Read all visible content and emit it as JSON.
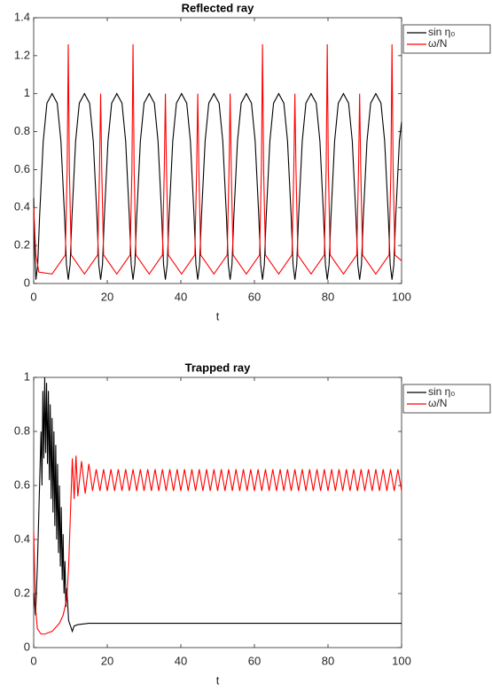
{
  "chart_data": [
    {
      "type": "line",
      "title": "Reflected ray",
      "xlabel": "t",
      "xlim": [
        0,
        100
      ],
      "ylim": [
        0,
        1.4
      ],
      "xticks": [
        0,
        20,
        40,
        60,
        80,
        100
      ],
      "yticks": [
        0,
        0.2,
        0.4,
        0.6,
        0.8,
        1,
        1.2,
        1.4
      ],
      "legend": "outside-northeast",
      "series": [
        {
          "name": "sin η₀",
          "color": "#000000",
          "x": [
            0,
            0.3,
            0.6,
            1.1,
            1.6,
            2.6,
            3.6,
            5,
            6.4,
            7.4,
            8.4,
            8.9,
            9.4,
            9.9,
            10.4,
            11.4,
            12.4,
            13.8,
            15.2,
            16.2,
            17.2,
            17.7,
            18.2,
            18.7,
            19.2,
            20.2,
            21.2,
            22.6,
            24,
            25,
            26,
            26.5,
            27,
            27.5,
            28,
            29,
            30,
            31.4,
            32.8,
            33.8,
            34.8,
            35.3,
            35.8,
            36.3,
            36.8,
            37.8,
            38.8,
            40.2,
            41.6,
            42.6,
            43.6,
            44.1,
            44.6,
            45.1,
            45.6,
            46.6,
            47.6,
            49,
            50.4,
            51.4,
            52.4,
            52.9,
            53.4,
            53.9,
            54.4,
            55.4,
            56.4,
            57.8,
            59.2,
            60.2,
            61.2,
            61.7,
            62.2,
            62.7,
            63.2,
            64.2,
            65.2,
            66.6,
            68,
            69,
            70,
            70.5,
            71,
            71.5,
            72,
            73,
            74,
            75.4,
            76.8,
            77.8,
            78.8,
            79.3,
            79.8,
            80.3,
            80.8,
            81.8,
            82.8,
            84.2,
            85.6,
            86.6,
            87.6,
            88.1,
            88.6,
            89.1,
            89.6,
            90.6,
            91.6,
            93,
            94.4,
            95.4,
            96.4,
            96.9,
            97.4,
            97.9,
            98.4,
            99.4,
            100
          ],
          "values": [
            0.45,
            0.15,
            0.02,
            0.1,
            0.35,
            0.75,
            0.95,
            1,
            0.95,
            0.75,
            0.35,
            0.1,
            0.02,
            0.1,
            0.35,
            0.75,
            0.95,
            1,
            0.95,
            0.75,
            0.35,
            0.1,
            0.02,
            0.1,
            0.35,
            0.75,
            0.95,
            1,
            0.95,
            0.75,
            0.35,
            0.1,
            0.02,
            0.1,
            0.35,
            0.75,
            0.95,
            1,
            0.95,
            0.75,
            0.35,
            0.1,
            0.02,
            0.1,
            0.35,
            0.75,
            0.95,
            1,
            0.95,
            0.75,
            0.35,
            0.1,
            0.02,
            0.1,
            0.35,
            0.75,
            0.95,
            1,
            0.95,
            0.75,
            0.35,
            0.1,
            0.02,
            0.1,
            0.35,
            0.75,
            0.95,
            1,
            0.95,
            0.75,
            0.35,
            0.1,
            0.02,
            0.1,
            0.35,
            0.75,
            0.95,
            1,
            0.95,
            0.75,
            0.35,
            0.1,
            0.02,
            0.1,
            0.35,
            0.75,
            0.95,
            1,
            0.95,
            0.75,
            0.35,
            0.1,
            0.02,
            0.1,
            0.35,
            0.75,
            0.95,
            1,
            0.95,
            0.75,
            0.35,
            0.1,
            0.02,
            0.1,
            0.35,
            0.75,
            0.95,
            1,
            0.95,
            0.75,
            0.35,
            0.1,
            0.02,
            0.1,
            0.35,
            0.75,
            0.85
          ]
        },
        {
          "name": "ω/N",
          "color": "#ff0000",
          "x": [
            0,
            0.6,
            1.4,
            5,
            8.6,
            9.1,
            9.4,
            9.7,
            10.2,
            13.8,
            17.4,
            17.9,
            18.2,
            18.5,
            19,
            22.6,
            26.2,
            26.7,
            27,
            27.3,
            27.8,
            31.4,
            35,
            35.5,
            35.8,
            36.1,
            36.6,
            40.2,
            43.8,
            44.3,
            44.6,
            44.9,
            45.4,
            49,
            52.6,
            53.1,
            53.4,
            53.7,
            54.2,
            57.8,
            61.4,
            61.9,
            62.2,
            62.5,
            63,
            66.6,
            70.2,
            70.7,
            71,
            71.3,
            71.8,
            75.4,
            79,
            79.5,
            79.8,
            80.1,
            80.6,
            84.2,
            87.8,
            88.3,
            88.6,
            88.9,
            89.4,
            93,
            96.6,
            97.1,
            97.4,
            97.7,
            98.2,
            100
          ],
          "values": [
            0.4,
            0.15,
            0.06,
            0.05,
            0.15,
            0.6,
            1.26,
            0.6,
            0.15,
            0.05,
            0.15,
            0.6,
            1,
            0.6,
            0.15,
            0.05,
            0.15,
            0.6,
            1.26,
            0.6,
            0.15,
            0.05,
            0.15,
            0.6,
            1,
            0.6,
            0.15,
            0.05,
            0.15,
            0.6,
            1,
            0.6,
            0.15,
            0.05,
            0.15,
            0.6,
            1,
            0.6,
            0.15,
            0.05,
            0.15,
            0.6,
            1.26,
            0.6,
            0.15,
            0.05,
            0.15,
            0.6,
            1,
            0.6,
            0.15,
            0.05,
            0.15,
            0.6,
            1.26,
            0.6,
            0.15,
            0.05,
            0.15,
            0.6,
            1,
            0.6,
            0.15,
            0.05,
            0.15,
            0.6,
            1.26,
            0.6,
            0.15,
            0.12
          ]
        }
      ]
    },
    {
      "type": "line",
      "title": "Trapped ray",
      "xlabel": "t",
      "xlim": [
        0,
        100
      ],
      "ylim": [
        0,
        1
      ],
      "xticks": [
        0,
        20,
        40,
        60,
        80,
        100
      ],
      "yticks": [
        0,
        0.2,
        0.4,
        0.6,
        0.8,
        1
      ],
      "legend": "outside-northeast",
      "series": [
        {
          "name": "sin η₀",
          "color": "#000000",
          "x": [
            0,
            0.5,
            1,
            1.5,
            2,
            2.25,
            2.5,
            2.75,
            3,
            3.25,
            3.5,
            3.75,
            4,
            4.25,
            4.5,
            4.75,
            5,
            5.25,
            5.5,
            5.75,
            6,
            6.25,
            6.5,
            6.75,
            7,
            7.25,
            7.5,
            7.75,
            8,
            8.25,
            8.5,
            8.75,
            9,
            9.5,
            10,
            10.5,
            11,
            12,
            15,
            100
          ],
          "values": [
            0.2,
            0.12,
            0.3,
            0.55,
            0.8,
            0.6,
            0.95,
            0.7,
            1,
            0.72,
            0.98,
            0.68,
            0.95,
            0.62,
            0.9,
            0.55,
            0.85,
            0.5,
            0.8,
            0.45,
            0.75,
            0.4,
            0.68,
            0.35,
            0.6,
            0.3,
            0.52,
            0.25,
            0.42,
            0.2,
            0.32,
            0.15,
            0.22,
            0.1,
            0.08,
            0.06,
            0.08,
            0.085,
            0.09,
            0.09
          ]
        },
        {
          "name": "ω/N",
          "color": "#ff0000",
          "x": [
            0,
            0.5,
            1,
            2,
            3,
            5,
            7,
            8,
            9,
            9.5,
            10,
            10.5,
            11,
            11.5,
            12,
            13,
            14,
            15,
            16,
            17,
            18,
            19,
            20,
            21,
            22,
            23,
            24,
            25,
            26,
            27,
            28,
            29,
            30,
            31,
            32,
            33,
            34,
            35,
            36,
            37,
            38,
            39,
            40,
            41,
            42,
            43,
            44,
            45,
            46,
            47,
            48,
            49,
            50,
            51,
            52,
            53,
            54,
            55,
            56,
            57,
            58,
            59,
            60,
            61,
            62,
            63,
            64,
            65,
            66,
            67,
            68,
            69,
            70,
            71,
            72,
            73,
            74,
            75,
            76,
            77,
            78,
            79,
            80,
            81,
            82,
            83,
            84,
            85,
            86,
            87,
            88,
            89,
            90,
            91,
            92,
            93,
            94,
            95,
            96,
            97,
            98,
            99,
            100
          ],
          "values": [
            0.43,
            0.15,
            0.07,
            0.05,
            0.05,
            0.06,
            0.09,
            0.12,
            0.18,
            0.3,
            0.5,
            0.7,
            0.55,
            0.71,
            0.56,
            0.69,
            0.57,
            0.68,
            0.58,
            0.66,
            0.58,
            0.66,
            0.58,
            0.66,
            0.58,
            0.66,
            0.58,
            0.66,
            0.58,
            0.66,
            0.58,
            0.66,
            0.58,
            0.66,
            0.58,
            0.66,
            0.58,
            0.66,
            0.58,
            0.66,
            0.58,
            0.66,
            0.58,
            0.66,
            0.58,
            0.66,
            0.58,
            0.66,
            0.58,
            0.66,
            0.58,
            0.66,
            0.58,
            0.66,
            0.58,
            0.66,
            0.58,
            0.66,
            0.58,
            0.66,
            0.58,
            0.66,
            0.58,
            0.66,
            0.58,
            0.66,
            0.58,
            0.66,
            0.58,
            0.66,
            0.58,
            0.66,
            0.58,
            0.66,
            0.58,
            0.66,
            0.58,
            0.66,
            0.58,
            0.66,
            0.58,
            0.66,
            0.58,
            0.66,
            0.58,
            0.66,
            0.58,
            0.66,
            0.58,
            0.66,
            0.58,
            0.66,
            0.58,
            0.66,
            0.58,
            0.66,
            0.58,
            0.66,
            0.58,
            0.66,
            0.58,
            0.66,
            0.58
          ]
        }
      ]
    }
  ]
}
